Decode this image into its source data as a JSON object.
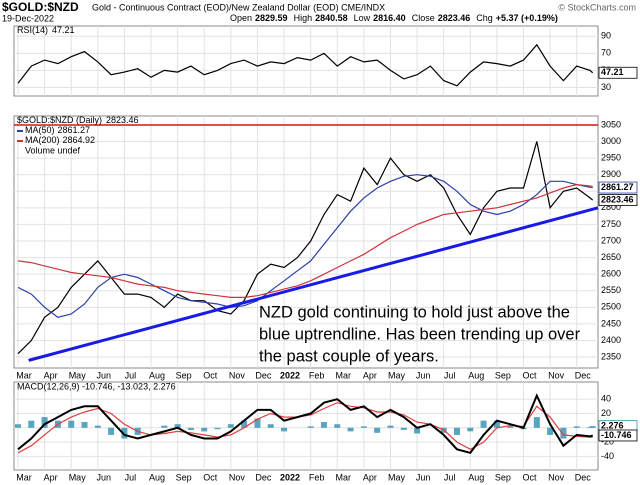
{
  "header": {
    "symbol": "$GOLD:$NZD",
    "description": "Gold - Continuous Contract (EOD)/New Zealand Dollar (EOD)  CME/INDX",
    "date": "19-Dec-2022",
    "copyright": "© StockCharts.com",
    "quote": [
      {
        "name": "Open",
        "value": "2829.59"
      },
      {
        "name": "High",
        "value": "2840.58"
      },
      {
        "name": "Low",
        "value": "2816.40"
      },
      {
        "name": "Close",
        "value": "2823.46"
      },
      {
        "name": "Chg",
        "value": "+5.37 (+0.19%)"
      }
    ]
  },
  "chart_data": [
    {
      "type": "line",
      "title": "RSI(14)",
      "grid": true,
      "x": [
        0,
        0.5,
        1,
        1.5,
        2,
        2.5,
        3,
        3.5,
        4,
        4.5,
        5,
        5.5,
        6,
        6.5,
        7,
        7.5,
        8,
        8.5,
        9,
        9.5,
        10,
        10.5,
        11,
        11.5,
        12,
        12.5,
        13,
        13.5,
        14,
        14.5,
        15,
        15.5,
        16,
        16.5,
        17,
        17.5,
        18,
        18.5,
        19,
        19.5,
        20,
        20.5,
        21,
        21.5,
        21.6
      ],
      "xlim": [
        -0.15,
        21.8
      ],
      "xticks": [
        {
          "value": 0,
          "label": "Mar"
        },
        {
          "value": 1,
          "label": "Apr"
        },
        {
          "value": 2,
          "label": "May"
        },
        {
          "value": 3,
          "label": "Jun"
        },
        {
          "value": 4,
          "label": "Jul"
        },
        {
          "value": 5,
          "label": "Aug"
        },
        {
          "value": 6,
          "label": "Sep"
        },
        {
          "value": 7,
          "label": "Oct"
        },
        {
          "value": 8,
          "label": "Nov"
        },
        {
          "value": 9,
          "label": "Dec"
        },
        {
          "value": 10,
          "label": "2022"
        },
        {
          "value": 11,
          "label": "Feb"
        },
        {
          "value": 12,
          "label": "Mar"
        },
        {
          "value": 13,
          "label": "Apr"
        },
        {
          "value": 14,
          "label": "May"
        },
        {
          "value": 15,
          "label": "Jun"
        },
        {
          "value": 16,
          "label": "Jul"
        },
        {
          "value": 17,
          "label": "Aug"
        },
        {
          "value": 18,
          "label": "Sep"
        },
        {
          "value": 19,
          "label": "Oct"
        },
        {
          "value": 20,
          "label": "Nov"
        },
        {
          "value": 21,
          "label": "Dec"
        }
      ],
      "ylim": [
        20,
        102
      ],
      "yticks": [
        30,
        50,
        70,
        90
      ],
      "series": [
        {
          "color": "#000000",
          "label_last": true,
          "values": [
            35,
            55,
            62,
            58,
            66,
            72,
            60,
            45,
            48,
            52,
            42,
            50,
            48,
            55,
            45,
            50,
            58,
            62,
            55,
            60,
            58,
            65,
            62,
            70,
            55,
            66,
            60,
            62,
            50,
            40,
            45,
            55,
            38,
            32,
            48,
            60,
            58,
            55,
            62,
            80,
            55,
            38,
            55,
            50,
            47.21
          ]
        }
      ]
    },
    {
      "type": "line",
      "title": "$GOLD:$NZD (Daily)",
      "grid": true,
      "volume_label": "Volume undef",
      "x": [
        0,
        0.5,
        1,
        1.5,
        2,
        2.5,
        3,
        3.5,
        4,
        4.5,
        5,
        5.5,
        6,
        6.5,
        7,
        7.5,
        8,
        8.5,
        9,
        9.5,
        10,
        10.5,
        11,
        11.5,
        12,
        12.5,
        13,
        13.5,
        14,
        14.5,
        15,
        15.5,
        16,
        16.5,
        17,
        17.5,
        18,
        18.5,
        19,
        19.5,
        20,
        20.5,
        21,
        21.5,
        21.6
      ],
      "xlim": [
        -0.15,
        21.8
      ],
      "xticks": [
        {
          "value": 0,
          "label": "Mar"
        },
        {
          "value": 1,
          "label": "Apr"
        },
        {
          "value": 2,
          "label": "May"
        },
        {
          "value": 3,
          "label": "Jun"
        },
        {
          "value": 4,
          "label": "Jul"
        },
        {
          "value": 5,
          "label": "Aug"
        },
        {
          "value": 6,
          "label": "Sep"
        },
        {
          "value": 7,
          "label": "Oct"
        },
        {
          "value": 8,
          "label": "Nov"
        },
        {
          "value": 9,
          "label": "Dec"
        },
        {
          "value": 10,
          "label": "2022",
          "bold": true
        },
        {
          "value": 11,
          "label": "Feb"
        },
        {
          "value": 12,
          "label": "Mar"
        },
        {
          "value": 13,
          "label": "Apr"
        },
        {
          "value": 14,
          "label": "May"
        },
        {
          "value": 15,
          "label": "Jun"
        },
        {
          "value": 16,
          "label": "Jul"
        },
        {
          "value": 17,
          "label": "Aug"
        },
        {
          "value": 18,
          "label": "Sep"
        },
        {
          "value": 19,
          "label": "Oct"
        },
        {
          "value": 20,
          "label": "Nov"
        },
        {
          "value": 21,
          "label": "Dec"
        }
      ],
      "ylim": [
        2317,
        3077
      ],
      "yticks": [
        2350,
        2400,
        2450,
        2500,
        2550,
        2600,
        2650,
        2700,
        2750,
        2800,
        2850,
        2900,
        2950,
        3000,
        3050
      ],
      "hlines": [
        {
          "value": 3050,
          "color": "#dd1111"
        }
      ],
      "trendline": {
        "x": [
          0.4,
          21.8
        ],
        "y": [
          2340,
          2800
        ],
        "color": "#1a1ae6"
      },
      "annotation": [
        "NZD gold continuing to hold just above the",
        "blue uptrendline. Has been trending up over",
        "the past couple of years."
      ],
      "annotation_color": "#1f3fdc",
      "series": [
        {
          "color": "#000000",
          "label_last": true,
          "values": [
            2360,
            2400,
            2470,
            2500,
            2560,
            2600,
            2640,
            2590,
            2540,
            2540,
            2530,
            2500,
            2540,
            2520,
            2520,
            2490,
            2480,
            2520,
            2600,
            2630,
            2620,
            2650,
            2700,
            2780,
            2840,
            2820,
            2920,
            2870,
            2950,
            2900,
            2880,
            2900,
            2860,
            2780,
            2720,
            2800,
            2850,
            2860,
            2860,
            3000,
            2800,
            2850,
            2860,
            2830,
            2823.46
          ]
        },
        {
          "name": "MA(50)",
          "color": "#2b3fa8",
          "label_last": true,
          "values": [
            2560,
            2540,
            2500,
            2470,
            2480,
            2510,
            2560,
            2590,
            2600,
            2590,
            2570,
            2550,
            2530,
            2520,
            2515,
            2510,
            2500,
            2505,
            2520,
            2550,
            2580,
            2610,
            2640,
            2690,
            2740,
            2790,
            2830,
            2860,
            2880,
            2895,
            2900,
            2895,
            2880,
            2850,
            2810,
            2790,
            2780,
            2790,
            2810,
            2840,
            2880,
            2880,
            2870,
            2862,
            2861.27
          ]
        },
        {
          "name": "MA(200)",
          "color": "#d0323c",
          "values": [
            2640,
            2635,
            2625,
            2615,
            2605,
            2600,
            2595,
            2590,
            2580,
            2570,
            2565,
            2560,
            2550,
            2545,
            2540,
            2535,
            2530,
            2530,
            2535,
            2545,
            2555,
            2565,
            2580,
            2600,
            2620,
            2640,
            2660,
            2685,
            2710,
            2730,
            2750,
            2765,
            2780,
            2785,
            2790,
            2795,
            2800,
            2810,
            2820,
            2830,
            2845,
            2860,
            2870,
            2866,
            2864.92
          ]
        }
      ]
    },
    {
      "type": "line",
      "label": "MACD(12,26,9) -10.746, -13.023, 2.276",
      "grid": true,
      "x": [
        0,
        0.5,
        1,
        1.5,
        2,
        2.5,
        3,
        3.5,
        4,
        4.5,
        5,
        5.5,
        6,
        6.5,
        7,
        7.5,
        8,
        8.5,
        9,
        9.5,
        10,
        10.5,
        11,
        11.5,
        12,
        12.5,
        13,
        13.5,
        14,
        14.5,
        15,
        15.5,
        16,
        16.5,
        17,
        17.5,
        18,
        18.5,
        19,
        19.5,
        20,
        20.5,
        21,
        21.5,
        21.6
      ],
      "xlim": [
        -0.15,
        21.8
      ],
      "xticks": [
        {
          "value": 0,
          "label": "Mar"
        },
        {
          "value": 1,
          "label": "Apr"
        },
        {
          "value": 2,
          "label": "May"
        },
        {
          "value": 3,
          "label": "Jun"
        },
        {
          "value": 4,
          "label": "Jul"
        },
        {
          "value": 5,
          "label": "Aug"
        },
        {
          "value": 6,
          "label": "Sep"
        },
        {
          "value": 7,
          "label": "Oct"
        },
        {
          "value": 8,
          "label": "Nov"
        },
        {
          "value": 9,
          "label": "Dec"
        },
        {
          "value": 10,
          "label": "2022",
          "bold": true
        },
        {
          "value": 11,
          "label": "Feb"
        },
        {
          "value": 12,
          "label": "Mar"
        },
        {
          "value": 13,
          "label": "Apr"
        },
        {
          "value": 14,
          "label": "May"
        },
        {
          "value": 15,
          "label": "Jun"
        },
        {
          "value": 16,
          "label": "Jul"
        },
        {
          "value": 17,
          "label": "Aug"
        },
        {
          "value": 18,
          "label": "Sep"
        },
        {
          "value": 19,
          "label": "Oct"
        },
        {
          "value": 20,
          "label": "Nov"
        },
        {
          "value": 21,
          "label": "Dec"
        }
      ],
      "ylim": [
        -59,
        64
      ],
      "yticks": [
        -40,
        -20,
        0,
        20,
        40
      ],
      "series": [
        {
          "kind": "bar",
          "color": "#2e8fb0",
          "label_last": true,
          "values": [
            5,
            10,
            15,
            10,
            10,
            8,
            3,
            -10,
            -15,
            -10,
            0,
            3,
            5,
            -3,
            -5,
            -2,
            5,
            10,
            13,
            5,
            -5,
            0,
            2,
            8,
            5,
            -5,
            2,
            -7,
            3,
            -3,
            -8,
            0,
            -7,
            -10,
            -5,
            10,
            10,
            2,
            -2,
            15,
            -10,
            -15,
            2,
            1,
            2.276
          ]
        },
        {
          "color": "#e04040",
          "values": [
            -35,
            -25,
            -10,
            5,
            15,
            22,
            27,
            20,
            5,
            -5,
            -10,
            -8,
            -5,
            -7,
            -10,
            -13,
            -10,
            0,
            12,
            20,
            15,
            15,
            18,
            27,
            35,
            30,
            28,
            22,
            22,
            18,
            8,
            5,
            -3,
            -20,
            -30,
            -20,
            0,
            3,
            2,
            30,
            15,
            -10,
            -12,
            -13,
            -13.023
          ]
        },
        {
          "color": "#000000",
          "label_last": true,
          "values": [
            -30,
            -15,
            5,
            15,
            25,
            30,
            30,
            10,
            -10,
            -15,
            -10,
            -5,
            0,
            -10,
            -15,
            -15,
            -5,
            10,
            25,
            25,
            10,
            15,
            20,
            35,
            40,
            25,
            30,
            15,
            25,
            15,
            0,
            5,
            -10,
            -30,
            -35,
            -10,
            10,
            5,
            0,
            45,
            5,
            -25,
            -10,
            -12,
            -10.746
          ]
        }
      ]
    }
  ]
}
